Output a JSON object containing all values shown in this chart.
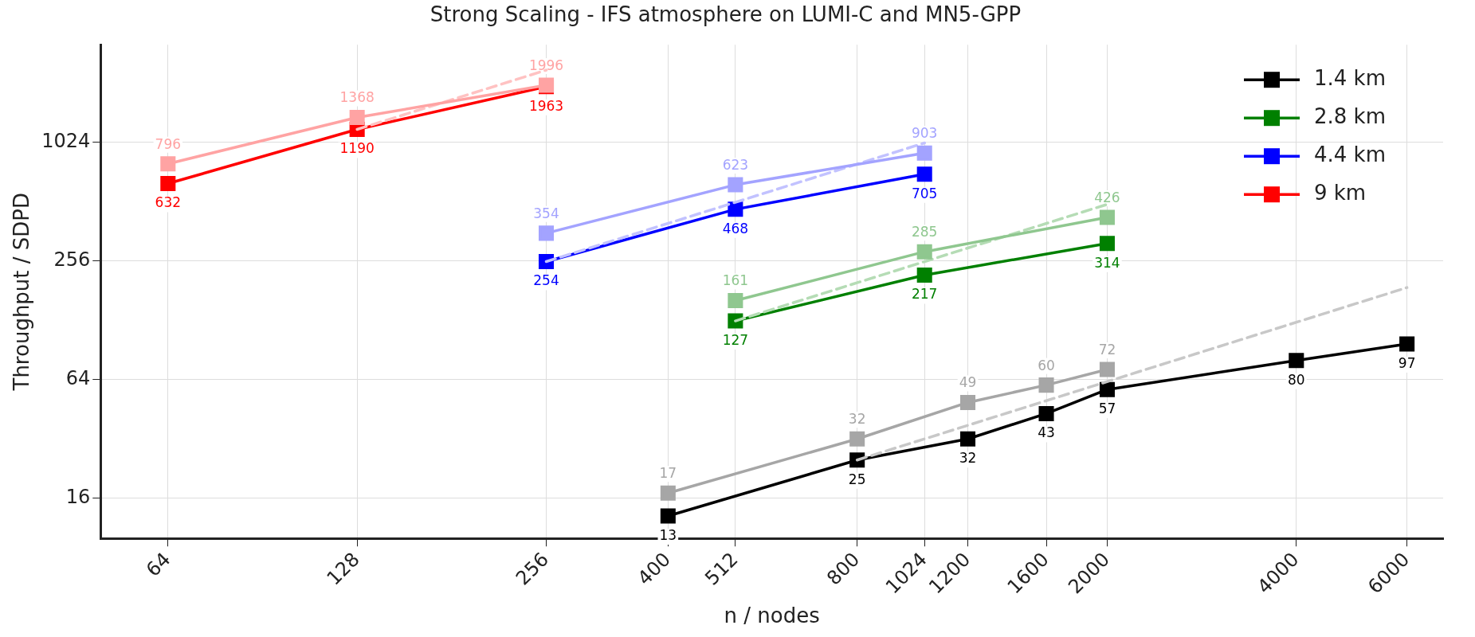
{
  "chart_data": {
    "type": "line",
    "title": "Strong Scaling - IFS atmosphere on LUMI-C and MN5-GPP",
    "xlabel": "n / nodes",
    "ylabel": "Throughput / SDPD",
    "log": "xy",
    "grid": true,
    "legend": "top right",
    "xlim": [
      50,
      6850
    ],
    "xticks": [
      64,
      128,
      256,
      400,
      512,
      800,
      1024,
      1200,
      1600,
      2000,
      4000,
      6000
    ],
    "ylim": [
      10,
      3200
    ],
    "yticks": [
      16,
      64,
      256,
      1024
    ],
    "series": [
      {
        "color": "#a6a6a6",
        "marker": "square",
        "x": [
          400,
          800,
          1200,
          1600,
          2000
        ],
        "values": [
          17,
          32,
          49,
          60,
          72
        ],
        "value_labels": [
          "17",
          "32",
          "49",
          "60",
          "72"
        ]
      },
      {
        "color": "#8fc78f",
        "marker": "square",
        "x": [
          512,
          1024,
          2000
        ],
        "values": [
          161,
          285,
          426
        ],
        "value_labels": [
          "161",
          "285",
          "426"
        ]
      },
      {
        "color": "#a3a3ff",
        "marker": "square",
        "x": [
          256,
          512,
          1024
        ],
        "values": [
          354,
          623,
          903
        ],
        "value_labels": [
          "354",
          "623",
          "903"
        ]
      },
      {
        "color": "#ffa3a3",
        "marker": "square",
        "x": [
          64,
          128,
          256
        ],
        "values": [
          796,
          1368,
          1996
        ],
        "value_labels": [
          "796",
          "1368",
          "1996"
        ]
      },
      {
        "color": "#c8c8c8",
        "marker": "none",
        "line_style": "dashed",
        "x": [
          800,
          6000
        ],
        "values": [
          25,
          187.5
        ]
      },
      {
        "color": "#b5dcb5",
        "marker": "none",
        "line_style": "dashed",
        "x": [
          512,
          2000
        ],
        "values": [
          127,
          496
        ]
      },
      {
        "color": "#c2c2ff",
        "marker": "none",
        "line_style": "dashed",
        "x": [
          256,
          1024
        ],
        "values": [
          254,
          1016
        ]
      },
      {
        "color": "#ffc2c2",
        "marker": "none",
        "line_style": "dashed",
        "x": [
          128,
          256
        ],
        "values": [
          1190,
          2380
        ]
      },
      {
        "name": "1.4 km",
        "color": "#000000",
        "marker": "square",
        "x": [
          400,
          800,
          1200,
          1600,
          2000,
          4000,
          6000
        ],
        "values": [
          13,
          25,
          32,
          43,
          57,
          80,
          97
        ],
        "value_labels": [
          "13",
          "25",
          "32",
          "43",
          "57",
          "80",
          "97"
        ]
      },
      {
        "name": "2.8 km",
        "color": "#008000",
        "marker": "square",
        "x": [
          512,
          1024,
          2000
        ],
        "values": [
          127,
          217,
          314
        ],
        "value_labels": [
          "127",
          "217",
          "314"
        ]
      },
      {
        "name": "4.4 km",
        "color": "#0000ff",
        "marker": "square",
        "x": [
          256,
          512,
          1024
        ],
        "values": [
          254,
          468,
          705
        ],
        "value_labels": [
          "254",
          "468",
          "705"
        ]
      },
      {
        "name": "9 km",
        "color": "#ff0000",
        "marker": "square",
        "x": [
          64,
          128,
          256
        ],
        "values": [
          632,
          1190,
          1963
        ],
        "value_labels": [
          "632",
          "1190",
          "1963"
        ]
      }
    ]
  }
}
